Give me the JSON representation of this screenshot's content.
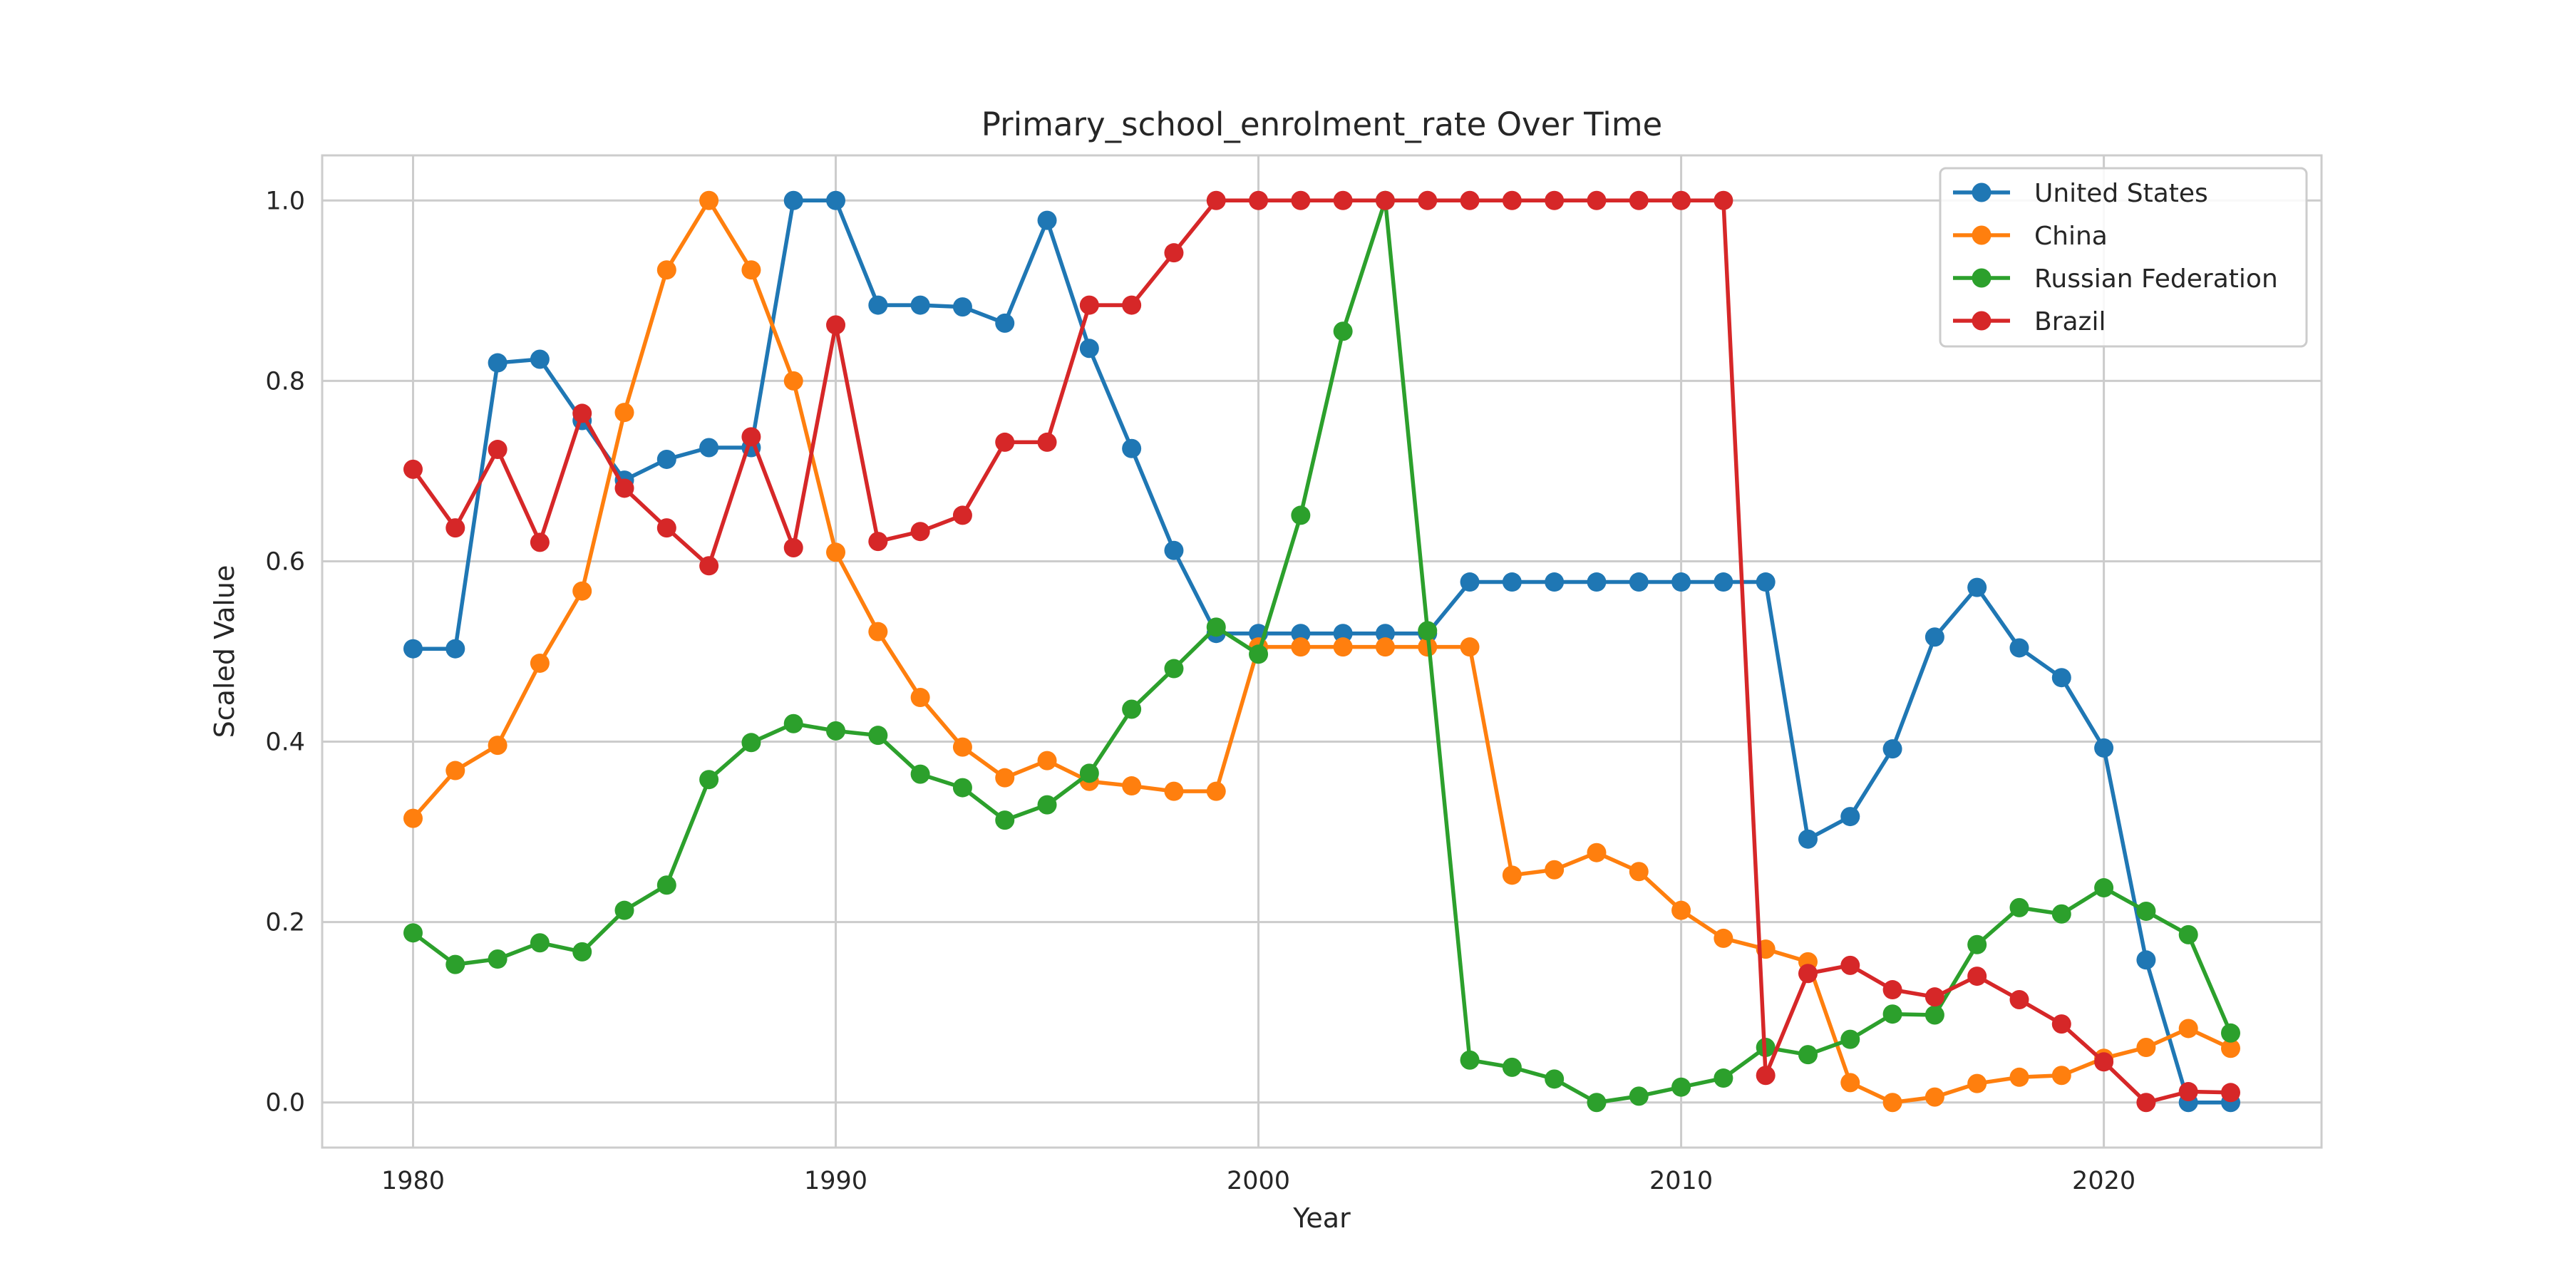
{
  "chart_data": {
    "type": "line",
    "title": "Primary_school_enrolment_rate Over Time",
    "xlabel": "Year",
    "ylabel": "Scaled Value",
    "xlim": [
      1977.85,
      2025.15
    ],
    "ylim": [
      -0.05,
      1.05
    ],
    "xticks": [
      1980,
      1990,
      2000,
      2010,
      2020
    ],
    "yticks": [
      0.0,
      0.2,
      0.4,
      0.6,
      0.8,
      1.0
    ],
    "ytick_labels": [
      "0.0",
      "0.2",
      "0.4",
      "0.6",
      "0.8",
      "1.0"
    ],
    "grid": true,
    "legend_position": "top-right",
    "x": [
      1980,
      1981,
      1982,
      1983,
      1984,
      1985,
      1986,
      1987,
      1988,
      1989,
      1990,
      1991,
      1992,
      1993,
      1994,
      1995,
      1996,
      1997,
      1998,
      1999,
      2000,
      2001,
      2002,
      2003,
      2004,
      2005,
      2006,
      2007,
      2008,
      2009,
      2010,
      2011,
      2012,
      2013,
      2014,
      2015,
      2016,
      2017,
      2018,
      2019,
      2020,
      2021,
      2022,
      2023
    ],
    "series": [
      {
        "name": "United States",
        "color": "#1f77b4",
        "values": [
          0.503,
          0.503,
          0.82,
          0.824,
          0.756,
          0.69,
          0.713,
          0.726,
          0.726,
          1.0,
          1.0,
          0.884,
          0.884,
          0.882,
          0.864,
          0.978,
          0.836,
          0.725,
          0.612,
          0.52,
          0.52,
          0.52,
          0.52,
          0.52,
          0.52,
          0.577,
          0.577,
          0.577,
          0.577,
          0.577,
          0.577,
          0.577,
          0.577,
          0.292,
          0.317,
          0.392,
          0.516,
          0.571,
          0.504,
          0.471,
          0.393,
          0.158,
          0.0,
          0.0
        ]
      },
      {
        "name": "China",
        "color": "#ff7f0e",
        "values": [
          0.315,
          0.368,
          0.396,
          0.487,
          0.567,
          0.765,
          0.923,
          1.0,
          0.923,
          0.8,
          0.61,
          0.522,
          0.449,
          0.394,
          0.36,
          0.379,
          0.356,
          0.351,
          0.345,
          0.345,
          0.505,
          0.505,
          0.505,
          0.505,
          0.505,
          0.505,
          0.252,
          0.258,
          0.277,
          0.256,
          0.213,
          0.182,
          0.17,
          0.156,
          0.022,
          0.0,
          0.006,
          0.021,
          0.028,
          0.03,
          0.049,
          0.061,
          0.082,
          0.06
        ]
      },
      {
        "name": "Russian Federation",
        "color": "#2ca02c",
        "values": [
          0.188,
          0.153,
          0.159,
          0.177,
          0.167,
          0.213,
          0.241,
          0.358,
          0.399,
          0.42,
          0.412,
          0.407,
          0.364,
          0.349,
          0.313,
          0.33,
          0.365,
          0.436,
          0.481,
          0.527,
          0.497,
          0.651,
          0.855,
          1.0,
          0.523,
          0.047,
          0.039,
          0.026,
          0.0,
          0.007,
          0.017,
          0.027,
          0.061,
          0.053,
          0.07,
          0.098,
          0.097,
          0.175,
          0.216,
          0.209,
          0.238,
          0.212,
          0.186,
          0.077
        ]
      },
      {
        "name": "Brazil",
        "color": "#d62728",
        "values": [
          0.702,
          0.637,
          0.724,
          0.621,
          0.764,
          0.681,
          0.637,
          0.595,
          0.738,
          0.615,
          0.862,
          0.622,
          0.633,
          0.651,
          0.732,
          0.732,
          0.884,
          0.884,
          0.942,
          1.0,
          1.0,
          1.0,
          1.0,
          1.0,
          1.0,
          1.0,
          1.0,
          1.0,
          1.0,
          1.0,
          1.0,
          1.0,
          0.03,
          0.143,
          0.152,
          0.125,
          0.117,
          0.14,
          0.114,
          0.087,
          0.045,
          0.0,
          0.012,
          0.011
        ]
      }
    ]
  }
}
